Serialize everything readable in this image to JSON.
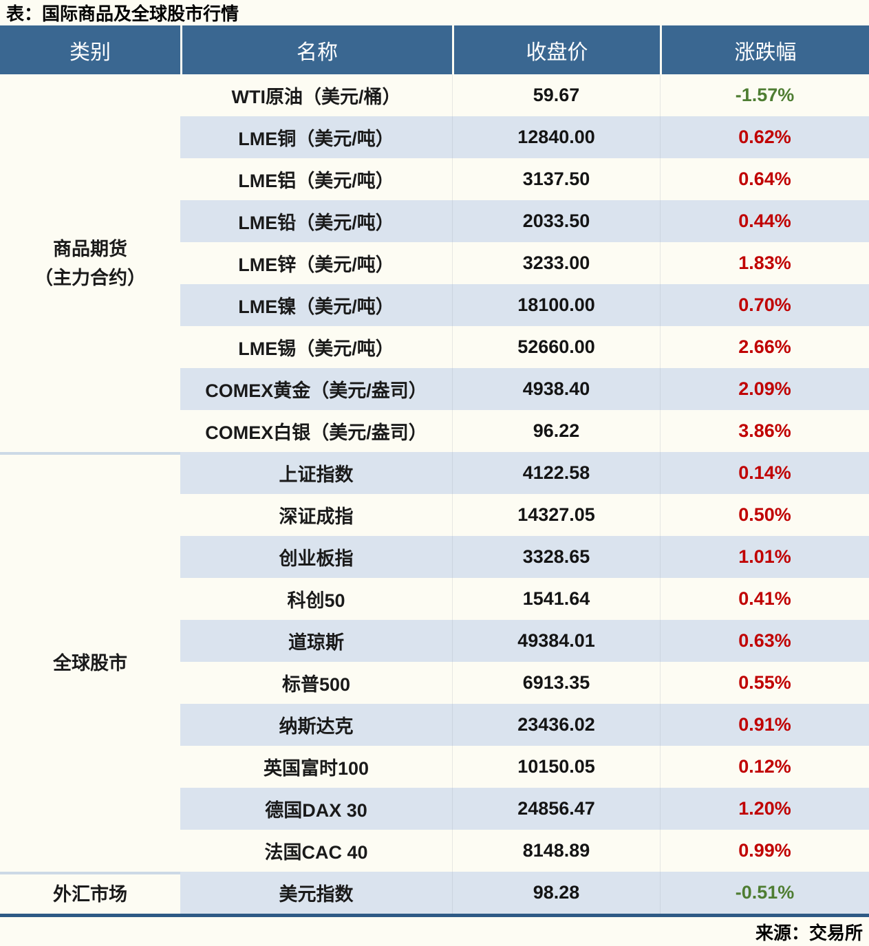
{
  "colors": {
    "header_bg": "#3a6791",
    "alt_row_bg": "#dae3ee",
    "page_bg": "#fdfcf3",
    "up_text": "#c00000",
    "down_text": "#4e7d32",
    "section_divider": "#ccd9e6",
    "bottom_rule": "#2e5a85"
  },
  "chart_data": {
    "type": "table",
    "title": "表：国际商品及全球股市行情",
    "source": "来源：交易所",
    "columns": [
      "类别",
      "名称",
      "收盘价",
      "涨跌幅"
    ],
    "categories": [
      {
        "lines": [
          "商品期货",
          "（主力合约）"
        ],
        "row_count": 9
      },
      {
        "lines": [
          "全球股市"
        ],
        "row_count": 10
      },
      {
        "lines": [
          "外汇市场"
        ],
        "row_count": 1
      }
    ],
    "rows": [
      {
        "name": "WTI原油（美元/桶）",
        "close": "59.67",
        "change": "-1.57%"
      },
      {
        "name": "LME铜（美元/吨）",
        "close": "12840.00",
        "change": "0.62%"
      },
      {
        "name": "LME铝（美元/吨）",
        "close": "3137.50",
        "change": "0.64%"
      },
      {
        "name": "LME铅（美元/吨）",
        "close": "2033.50",
        "change": "0.44%"
      },
      {
        "name": "LME锌（美元/吨）",
        "close": "3233.00",
        "change": "1.83%"
      },
      {
        "name": "LME镍（美元/吨）",
        "close": "18100.00",
        "change": "0.70%"
      },
      {
        "name": "LME锡（美元/吨）",
        "close": "52660.00",
        "change": "2.66%"
      },
      {
        "name": "COMEX黄金（美元/盎司）",
        "close": "4938.40",
        "change": "2.09%"
      },
      {
        "name": "COMEX白银（美元/盎司）",
        "close": "96.22",
        "change": "3.86%"
      },
      {
        "name": "上证指数",
        "close": "4122.58",
        "change": "0.14%"
      },
      {
        "name": "深证成指",
        "close": "14327.05",
        "change": "0.50%"
      },
      {
        "name": "创业板指",
        "close": "3328.65",
        "change": "1.01%"
      },
      {
        "name": "科创50",
        "close": "1541.64",
        "change": "0.41%"
      },
      {
        "name": "道琼斯",
        "close": "49384.01",
        "change": "0.63%"
      },
      {
        "name": "标普500",
        "close": "6913.35",
        "change": "0.55%"
      },
      {
        "name": "纳斯达克",
        "close": "23436.02",
        "change": "0.91%"
      },
      {
        "name": "英国富时100",
        "close": "10150.05",
        "change": "0.12%"
      },
      {
        "name": "德国DAX 30",
        "close": "24856.47",
        "change": "1.20%"
      },
      {
        "name": "法国CAC 40",
        "close": "8148.89",
        "change": "0.99%"
      },
      {
        "name": "美元指数",
        "close": "98.28",
        "change": "-0.51%"
      }
    ]
  }
}
